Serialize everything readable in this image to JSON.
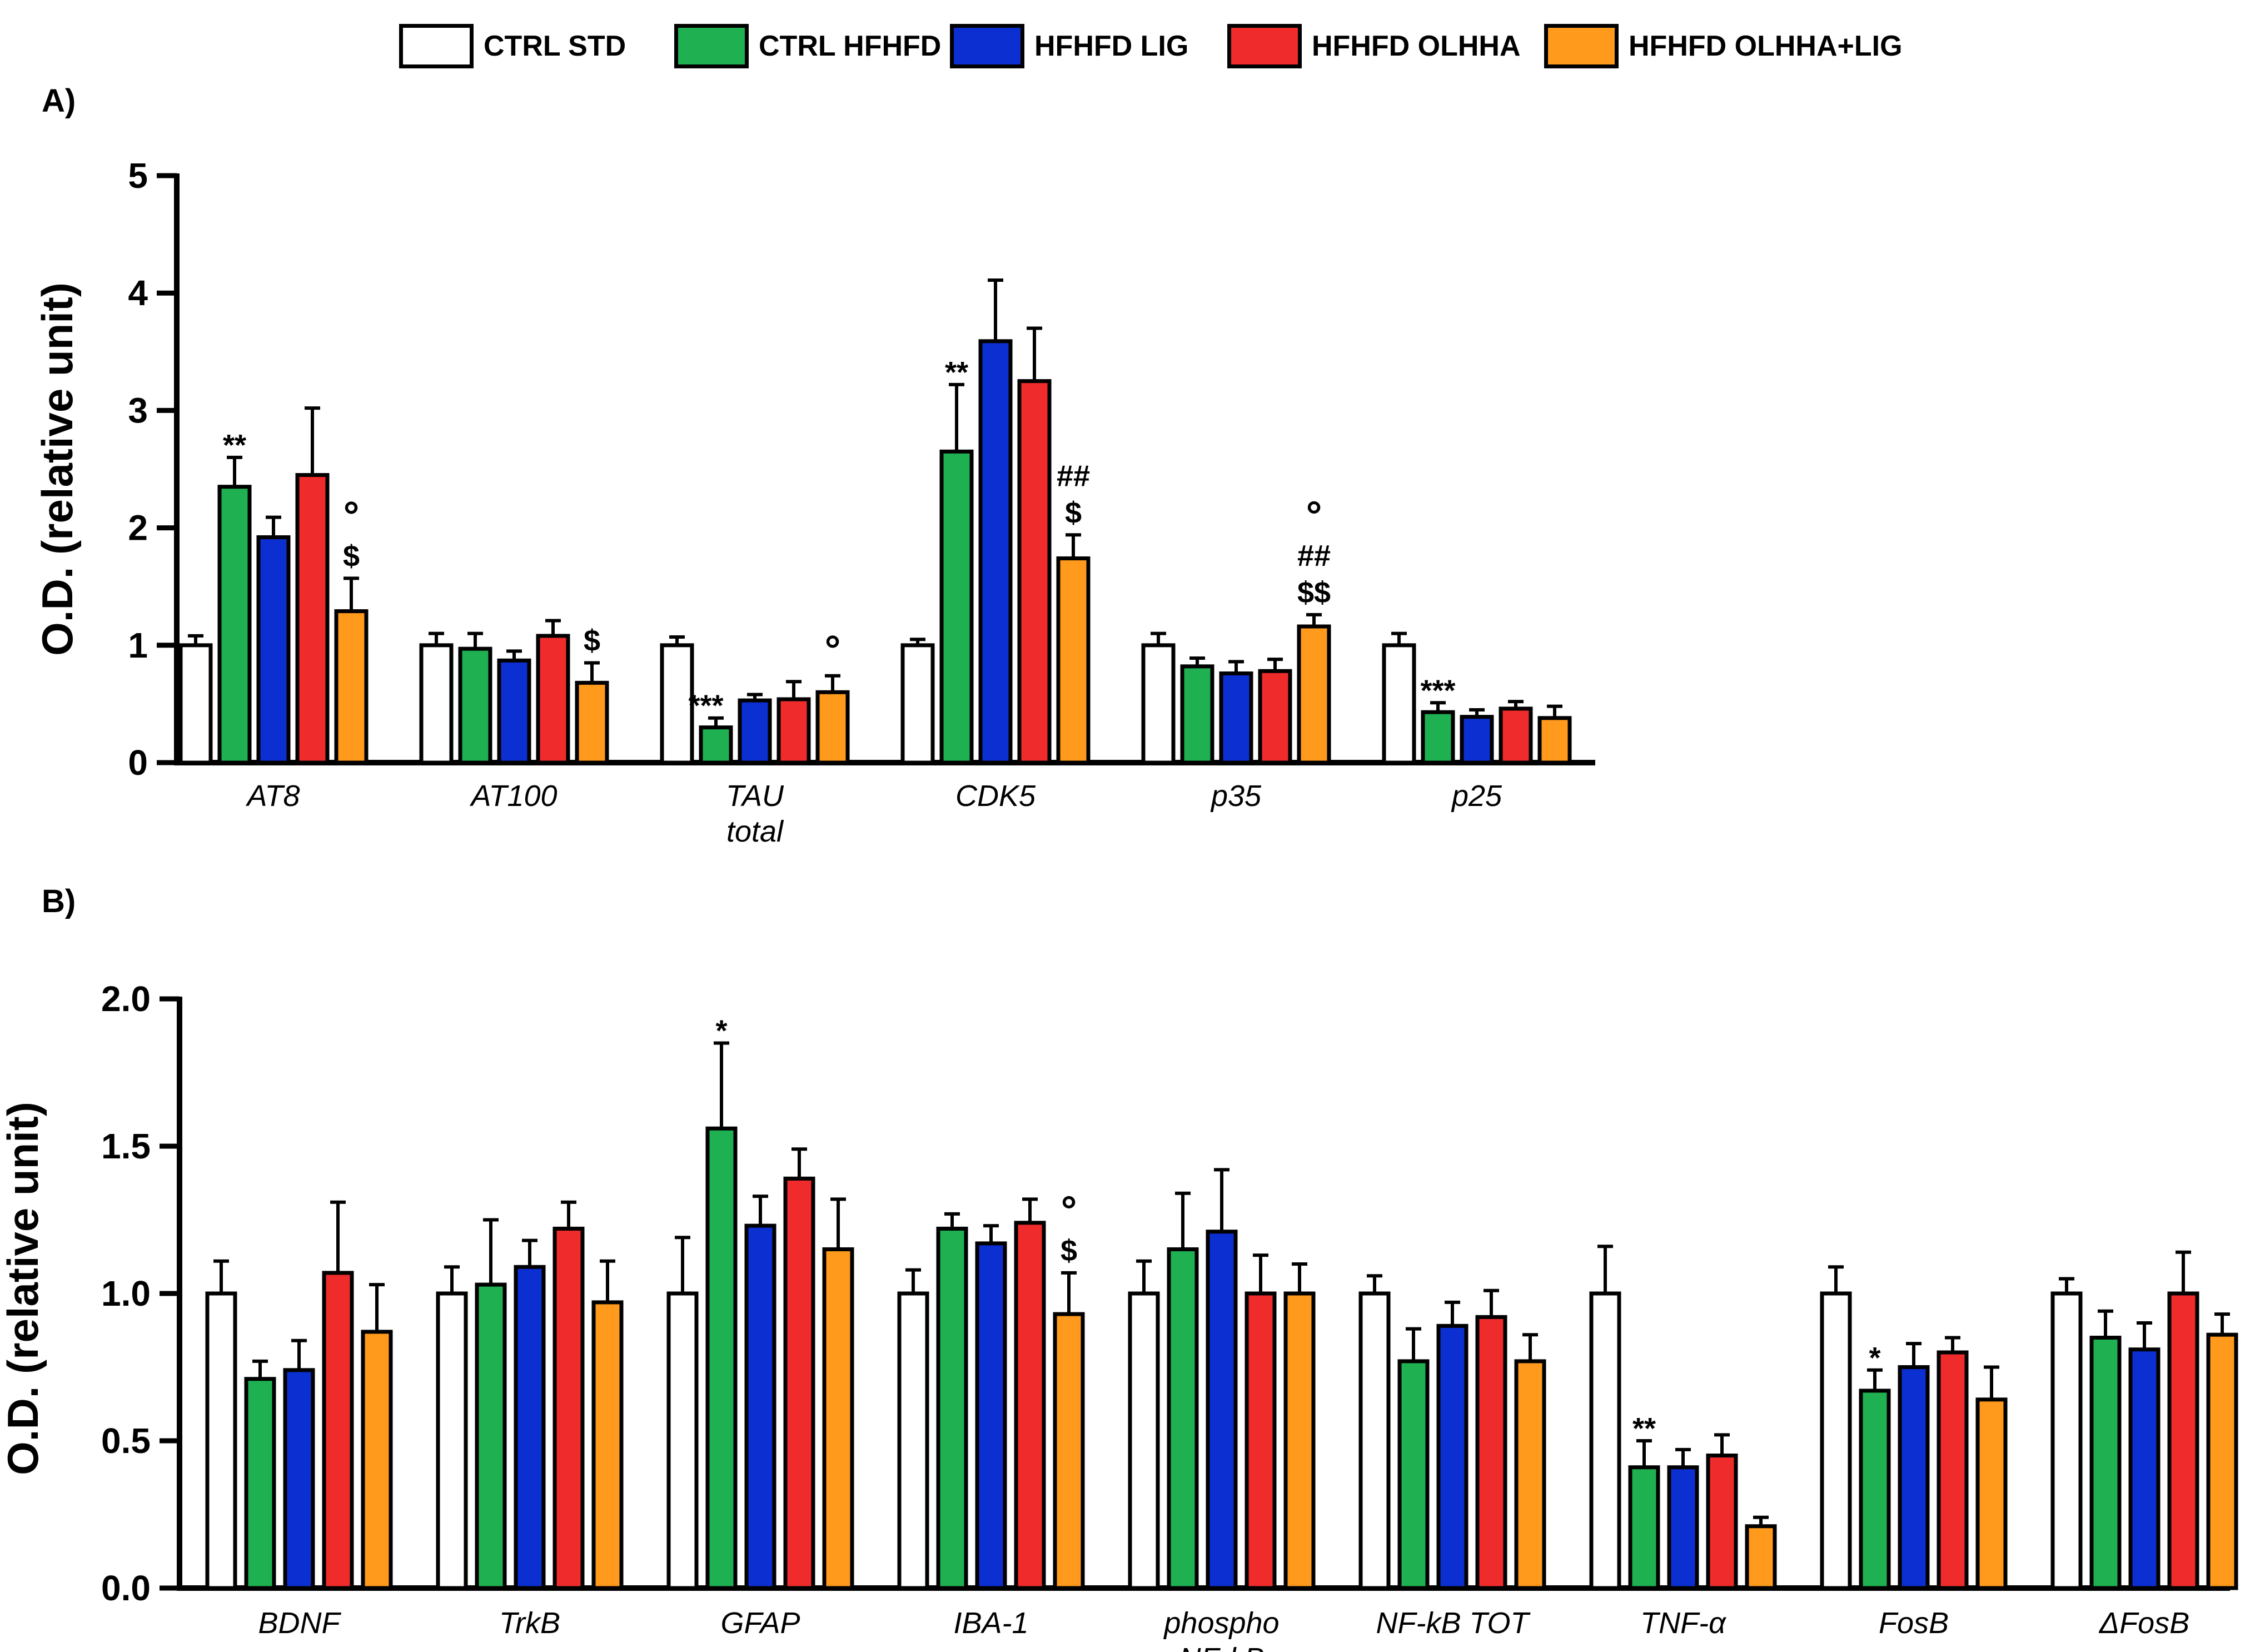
{
  "colors": {
    "CTRL STD": "#ffffff",
    "CTRL HFHFD": "#1fb151",
    "HFHFD LIG": "#0b2fd0",
    "HFHFD OLHHA": "#ef2b2b",
    "HFHFD OLHHA+LIG": "#ff9a1c"
  },
  "legend": [
    "CTRL STD",
    "CTRL HFHFD",
    "HFHFD LIG",
    "HFHFD OLHHA",
    "HFHFD OLHHA+LIG"
  ],
  "panel_labels": {
    "a": "A)",
    "b": "B)"
  },
  "chart_data": [
    {
      "type": "bar",
      "panel": "A)",
      "ylabel": "O.D. (relative unit)",
      "ylim": [
        0,
        5
      ],
      "yticks": [
        0,
        1,
        2,
        3,
        4,
        5
      ],
      "ytick_labels": [
        "0",
        "1",
        "2",
        "3",
        "4",
        "5"
      ],
      "categories": [
        {
          "lines": [
            "AT8"
          ]
        },
        {
          "lines": [
            "AT100"
          ]
        },
        {
          "lines": [
            "TAU",
            "total"
          ]
        },
        {
          "lines": [
            "CDK5"
          ]
        },
        {
          "lines": [
            "p35"
          ]
        },
        {
          "lines": [
            "p25"
          ]
        }
      ],
      "series": [
        {
          "name": "CTRL STD",
          "values": [
            1.0,
            1.0,
            1.0,
            1.0,
            1.0,
            1.0
          ],
          "errors": [
            0.08,
            0.1,
            0.07,
            0.05,
            0.1,
            0.1
          ]
        },
        {
          "name": "CTRL HFHFD",
          "values": [
            2.35,
            0.97,
            0.3,
            2.65,
            0.82,
            0.43
          ],
          "errors": [
            0.25,
            0.13,
            0.08,
            0.57,
            0.07,
            0.08
          ]
        },
        {
          "name": "HFHFD LIG",
          "values": [
            1.92,
            0.87,
            0.53,
            3.59,
            0.76,
            0.39
          ],
          "errors": [
            0.17,
            0.08,
            0.05,
            0.52,
            0.1,
            0.06
          ]
        },
        {
          "name": "HFHFD OLHHA",
          "values": [
            2.45,
            1.08,
            0.54,
            3.25,
            0.78,
            0.46
          ],
          "errors": [
            0.57,
            0.13,
            0.15,
            0.45,
            0.1,
            0.06
          ]
        },
        {
          "name": "HFHFD OLHHA+LIG",
          "values": [
            1.29,
            0.68,
            0.6,
            1.74,
            1.16,
            0.38
          ],
          "errors": [
            0.28,
            0.17,
            0.14,
            0.2,
            0.1,
            0.1
          ]
        }
      ],
      "annotations": [
        {
          "category": 0,
          "series": 1,
          "lines": [
            "**"
          ]
        },
        {
          "category": 0,
          "series": 4,
          "lines": [
            "°",
            "$"
          ]
        },
        {
          "category": 1,
          "series": 4,
          "lines": [
            "$"
          ]
        },
        {
          "category": 2,
          "series": 1,
          "lines": [
            "***"
          ],
          "anchor": "left"
        },
        {
          "category": 2,
          "series": 4,
          "lines": [
            "°"
          ]
        },
        {
          "category": 3,
          "series": 1,
          "lines": [
            "**"
          ]
        },
        {
          "category": 3,
          "series": 4,
          "lines": [
            "##",
            "$"
          ]
        },
        {
          "category": 4,
          "series": 4,
          "lines": [
            "°",
            "##",
            "$$"
          ]
        },
        {
          "category": 5,
          "series": 1,
          "lines": [
            "***"
          ]
        }
      ]
    },
    {
      "type": "bar",
      "panel": "B)",
      "ylabel": "O.D. (relative unit)",
      "ylim": [
        0,
        2.0
      ],
      "yticks": [
        0,
        0.5,
        1.0,
        1.5,
        2.0
      ],
      "ytick_labels": [
        "0.0",
        "0.5",
        "1.0",
        "1.5",
        "2.0"
      ],
      "categories": [
        {
          "lines": [
            "BDNF"
          ]
        },
        {
          "lines": [
            "TrkB"
          ]
        },
        {
          "lines": [
            "GFAP"
          ]
        },
        {
          "lines": [
            "IBA-1"
          ]
        },
        {
          "lines": [
            "phospho",
            "NF-kB"
          ]
        },
        {
          "lines": [
            "NF-kB TOT"
          ]
        },
        {
          "lines": [
            "TNF-α"
          ]
        },
        {
          "lines": [
            "FosB"
          ]
        },
        {
          "lines": [
            "ΔFosB"
          ]
        }
      ],
      "series": [
        {
          "name": "CTRL STD",
          "values": [
            1.0,
            1.0,
            1.0,
            1.0,
            1.0,
            1.0,
            1.0,
            1.0,
            1.0
          ],
          "errors": [
            0.11,
            0.09,
            0.19,
            0.08,
            0.11,
            0.06,
            0.16,
            0.09,
            0.05
          ]
        },
        {
          "name": "CTRL HFHFD",
          "values": [
            0.71,
            1.03,
            1.56,
            1.22,
            1.15,
            0.77,
            0.41,
            0.67,
            0.85
          ],
          "errors": [
            0.06,
            0.22,
            0.29,
            0.05,
            0.19,
            0.11,
            0.09,
            0.07,
            0.09
          ]
        },
        {
          "name": "HFHFD LIG",
          "values": [
            0.74,
            1.09,
            1.23,
            1.17,
            1.21,
            0.89,
            0.41,
            0.75,
            0.81
          ],
          "errors": [
            0.1,
            0.09,
            0.1,
            0.06,
            0.21,
            0.08,
            0.06,
            0.08,
            0.09
          ]
        },
        {
          "name": "HFHFD OLHHA",
          "values": [
            1.07,
            1.22,
            1.39,
            1.24,
            1.0,
            0.92,
            0.45,
            0.8,
            1.0
          ],
          "errors": [
            0.24,
            0.09,
            0.1,
            0.08,
            0.13,
            0.09,
            0.07,
            0.05,
            0.14
          ]
        },
        {
          "name": "HFHFD OLHHA+LIG",
          "values": [
            0.87,
            0.97,
            1.15,
            0.93,
            1.0,
            0.77,
            0.21,
            0.64,
            0.86
          ],
          "errors": [
            0.16,
            0.14,
            0.17,
            0.14,
            0.1,
            0.09,
            0.03,
            0.11,
            0.07
          ]
        }
      ],
      "annotations": [
        {
          "category": 2,
          "series": 1,
          "lines": [
            "*"
          ]
        },
        {
          "category": 3,
          "series": 4,
          "lines": [
            "°",
            "$"
          ]
        },
        {
          "category": 6,
          "series": 1,
          "lines": [
            "**"
          ]
        },
        {
          "category": 7,
          "series": 1,
          "lines": [
            "*"
          ]
        }
      ]
    }
  ]
}
